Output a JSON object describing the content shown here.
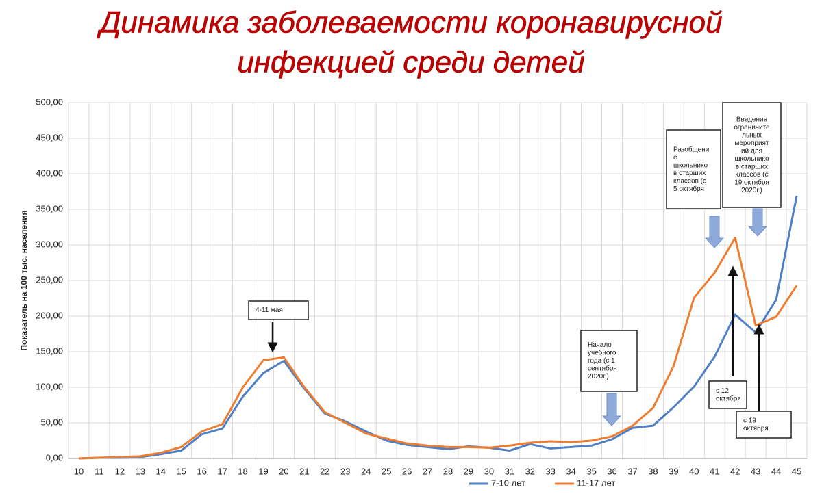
{
  "chart_data": {
    "type": "line",
    "title_lines": [
      "Динамика заболеваемости коронавирусной",
      "инфекцией среди детей"
    ],
    "y_label": "Показатель на 100 тыс. населения",
    "categories": [
      "10",
      "11",
      "12",
      "13",
      "14",
      "15",
      "16",
      "17",
      "18",
      "19",
      "20",
      "21",
      "22",
      "23",
      "24",
      "25",
      "26",
      "27",
      "28",
      "29",
      "30",
      "31",
      "32",
      "33",
      "34",
      "35",
      "36",
      "37",
      "38",
      "39",
      "40",
      "41",
      "42",
      "43",
      "44",
      "45"
    ],
    "series": [
      {
        "name": "7-10 лет",
        "color": "#4f7fc6",
        "values": [
          0,
          1,
          1,
          2,
          6,
          11,
          34,
          42,
          87,
          120,
          137,
          98,
          63,
          52,
          38,
          25,
          19,
          16,
          13,
          17,
          15,
          11,
          20,
          14,
          16,
          18,
          27,
          43,
          46,
          72,
          101,
          143,
          202,
          177,
          223,
          369
        ]
      },
      {
        "name": "11-17 лет",
        "color": "#ed7d31",
        "values": [
          0,
          1,
          2,
          3,
          8,
          16,
          38,
          48,
          100,
          138,
          142,
          100,
          65,
          50,
          35,
          28,
          21,
          18,
          16,
          16,
          15,
          18,
          22,
          24,
          23,
          25,
          31,
          46,
          71,
          130,
          226,
          261,
          310,
          187,
          199,
          243
        ]
      }
    ],
    "ylim": [
      0,
      500
    ],
    "yticks": [
      {
        "value": 0,
        "label": "0,00"
      },
      {
        "value": 50,
        "label": "50,00"
      },
      {
        "value": 100,
        "label": "100,00"
      },
      {
        "value": 150,
        "label": "150,00"
      },
      {
        "value": 200,
        "label": "200,00"
      },
      {
        "value": 250,
        "label": "250,00"
      },
      {
        "value": 300,
        "label": "300,00"
      },
      {
        "value": 350,
        "label": "350,00"
      },
      {
        "value": 400,
        "label": "400,00"
      },
      {
        "value": 450,
        "label": "450,00"
      },
      {
        "value": 500,
        "label": "500,00"
      }
    ],
    "grid": true,
    "legend": "bottom",
    "annotations": [
      {
        "lines": [
          "4-11 мая"
        ]
      },
      {
        "lines": [
          "Начало",
          "учебного",
          "года (с 1",
          "сентября",
          "2020г.)"
        ]
      },
      {
        "lines": [
          "Разобщени",
          "е",
          "школьнико",
          "в старших",
          "классов (с",
          "5 октября"
        ]
      },
      {
        "lines": [
          "Введение",
          "ограничите",
          "льных",
          "мероприят",
          "ий для",
          "школьнико",
          "в старших",
          "классов (с",
          "19 октября",
          "2020г.)"
        ]
      },
      {
        "lines": [
          "с 12",
          "октября"
        ]
      },
      {
        "lines": [
          "с 19",
          "октября"
        ]
      }
    ]
  }
}
